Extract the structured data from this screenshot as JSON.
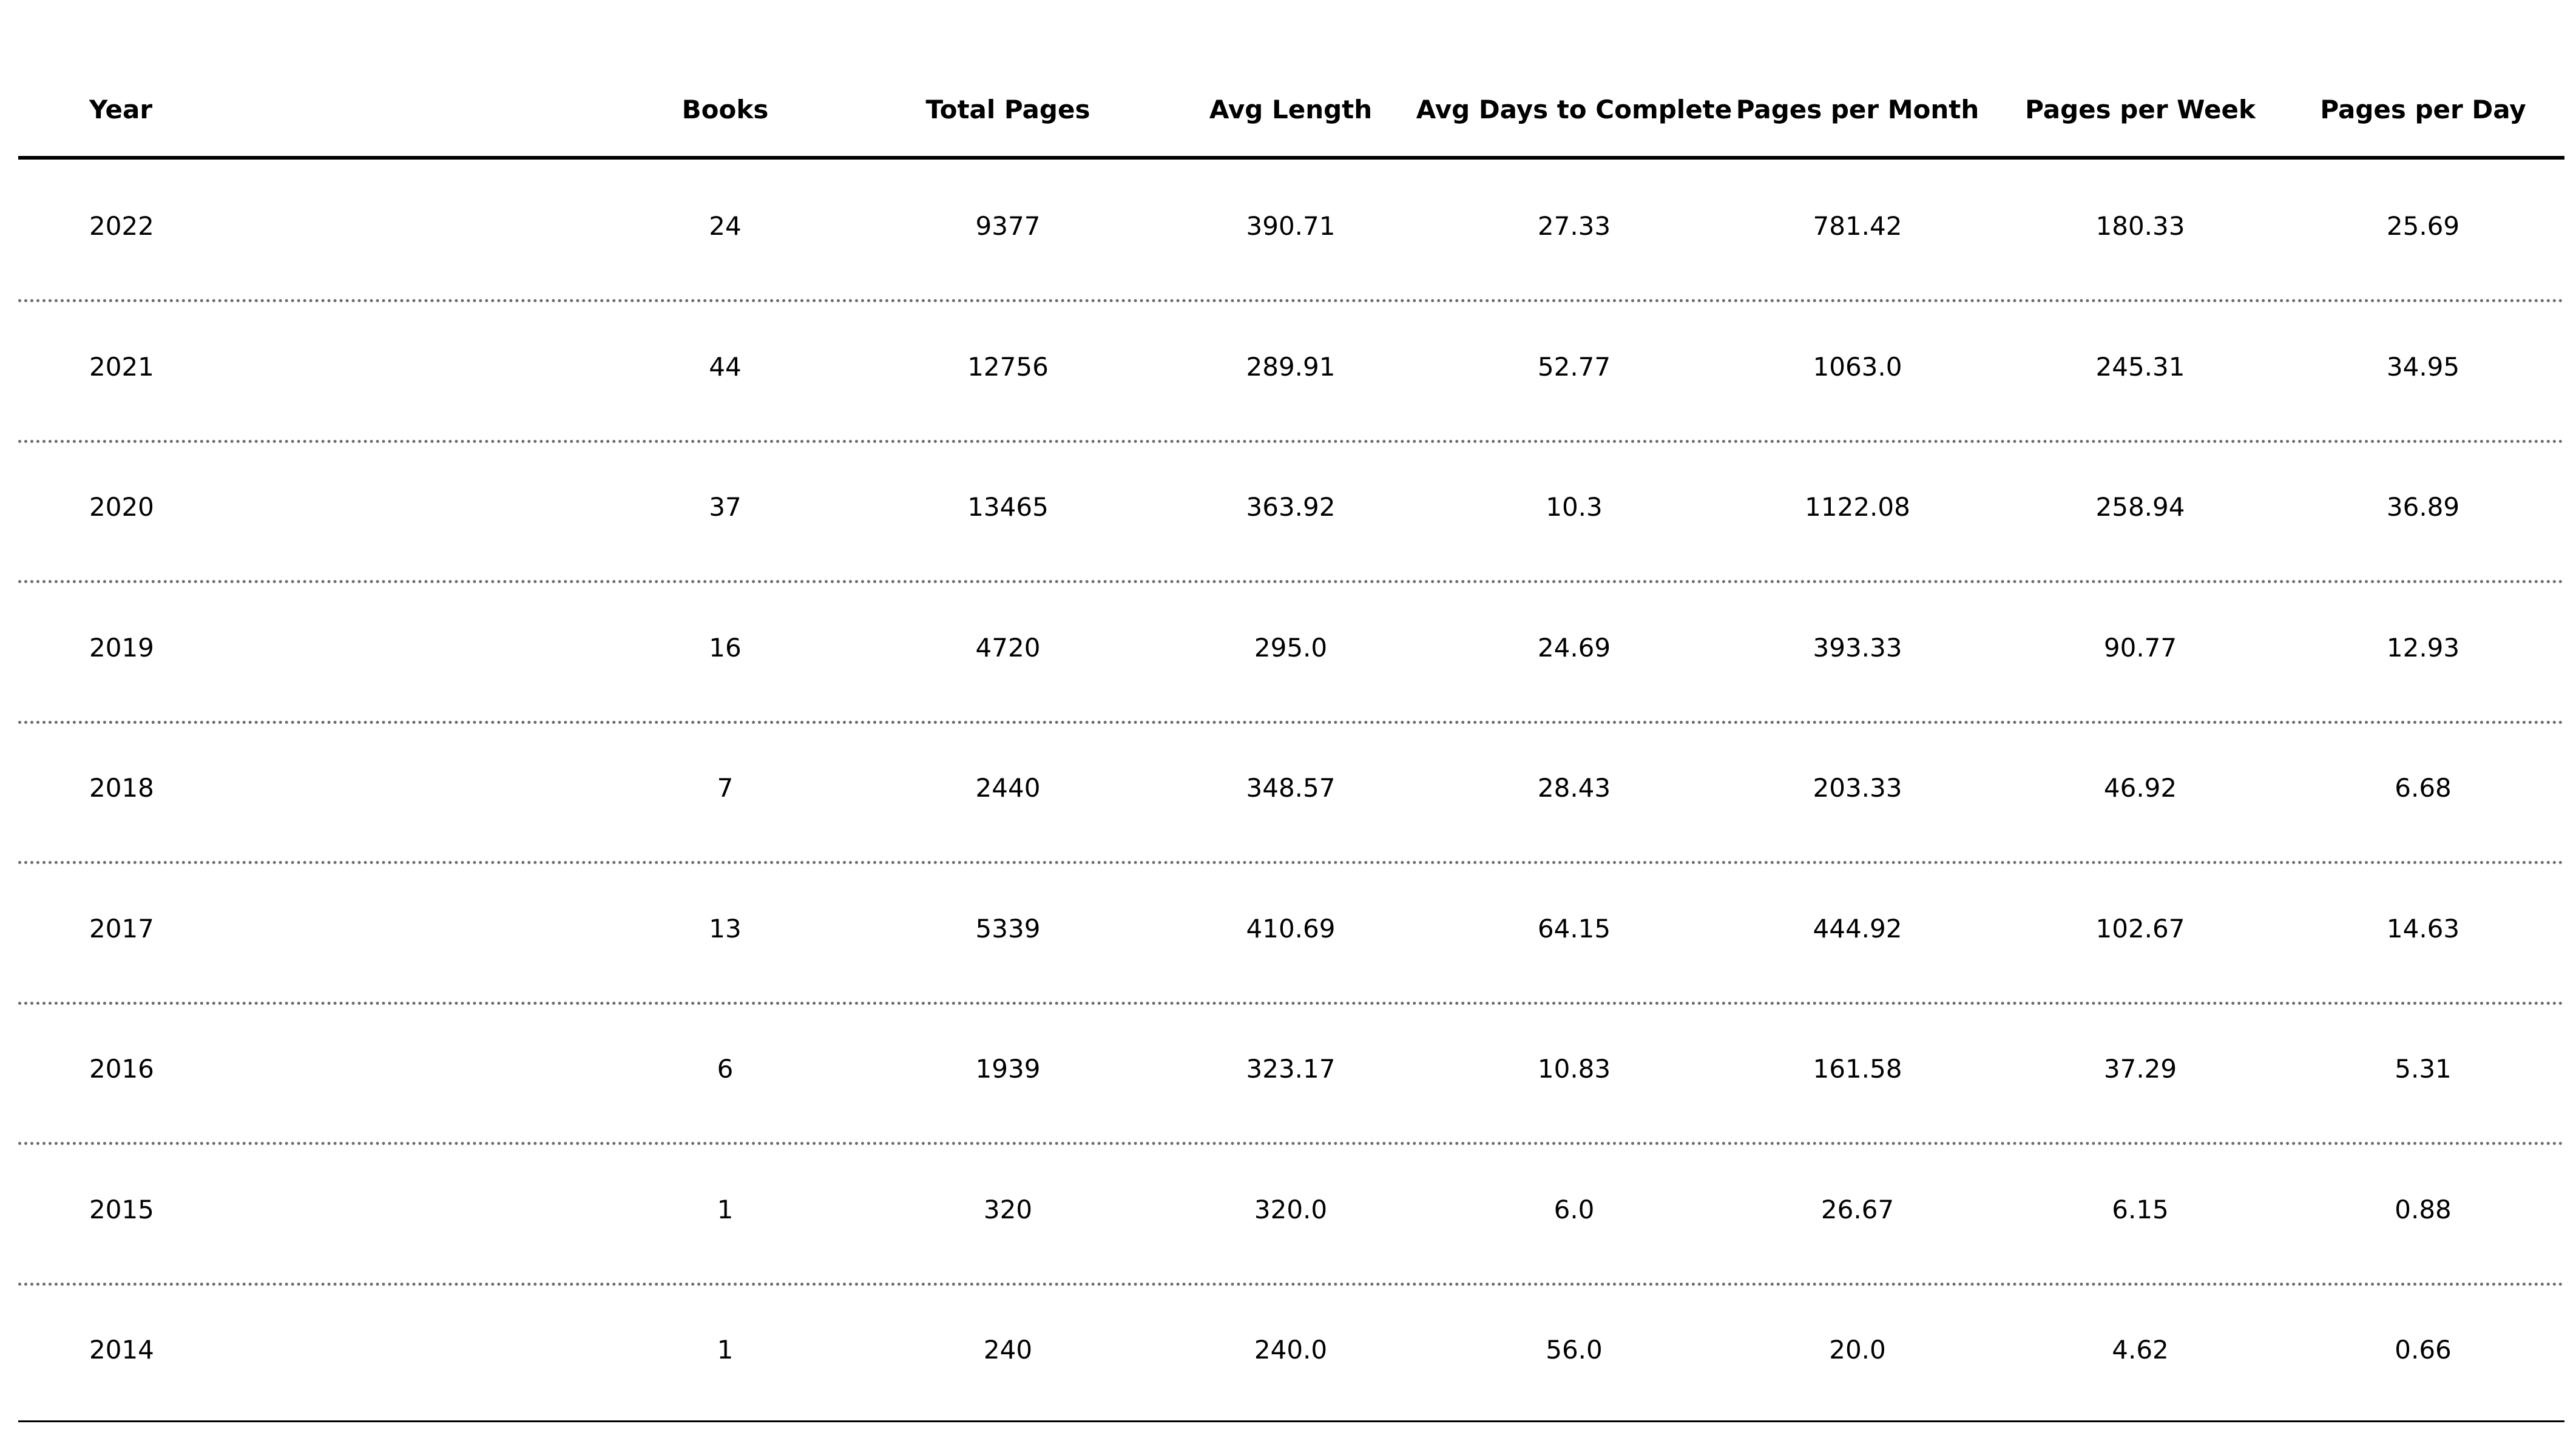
{
  "chart_data": {
    "type": "table",
    "columns": [
      "Year",
      "Books",
      "Total Pages",
      "Avg Length",
      "Avg Days to Complete",
      "Pages per Month",
      "Pages per Week",
      "Pages per Day"
    ],
    "rows": [
      [
        "2022",
        "24",
        "9377",
        "390.71",
        "27.33",
        "781.42",
        "180.33",
        "25.69"
      ],
      [
        "2021",
        "44",
        "12756",
        "289.91",
        "52.77",
        "1063.0",
        "245.31",
        "34.95"
      ],
      [
        "2020",
        "37",
        "13465",
        "363.92",
        "10.3",
        "1122.08",
        "258.94",
        "36.89"
      ],
      [
        "2019",
        "16",
        "4720",
        "295.0",
        "24.69",
        "393.33",
        "90.77",
        "12.93"
      ],
      [
        "2018",
        "7",
        "2440",
        "348.57",
        "28.43",
        "203.33",
        "46.92",
        "6.68"
      ],
      [
        "2017",
        "13",
        "5339",
        "410.69",
        "64.15",
        "444.92",
        "102.67",
        "14.63"
      ],
      [
        "2016",
        "6",
        "1939",
        "323.17",
        "10.83",
        "161.58",
        "37.29",
        "5.31"
      ],
      [
        "2015",
        "1",
        "320",
        "320.0",
        "6.0",
        "26.67",
        "6.15",
        "0.88"
      ],
      [
        "2014",
        "1",
        "240",
        "240.0",
        "56.0",
        "20.0",
        "4.62",
        "0.66"
      ]
    ]
  }
}
